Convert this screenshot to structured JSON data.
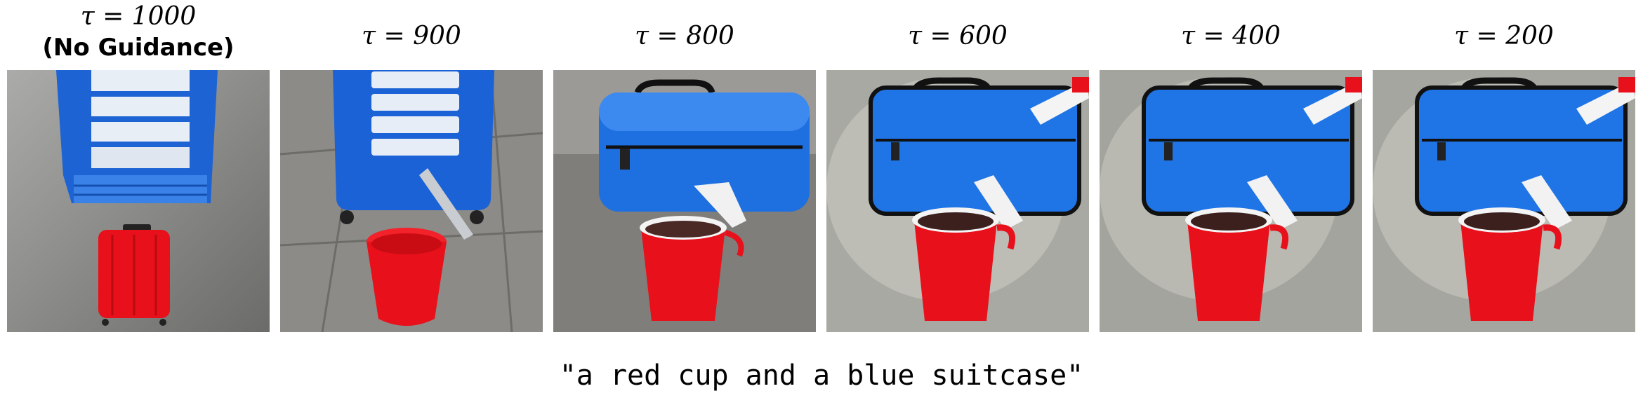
{
  "panels": [
    {
      "label": "τ = 1000",
      "sublabel": "(No Guidance)"
    },
    {
      "label": "τ = 900"
    },
    {
      "label": "τ = 800"
    },
    {
      "label": "τ = 600"
    },
    {
      "label": "τ = 400"
    },
    {
      "label": "τ = 200"
    }
  ],
  "caption": "\"a red cup and a blue suitcase\"",
  "colors": {
    "suitcase_blue": "#1f6fe0",
    "cup_red": "#e8101a",
    "ground_gray": "#8a8a86"
  }
}
